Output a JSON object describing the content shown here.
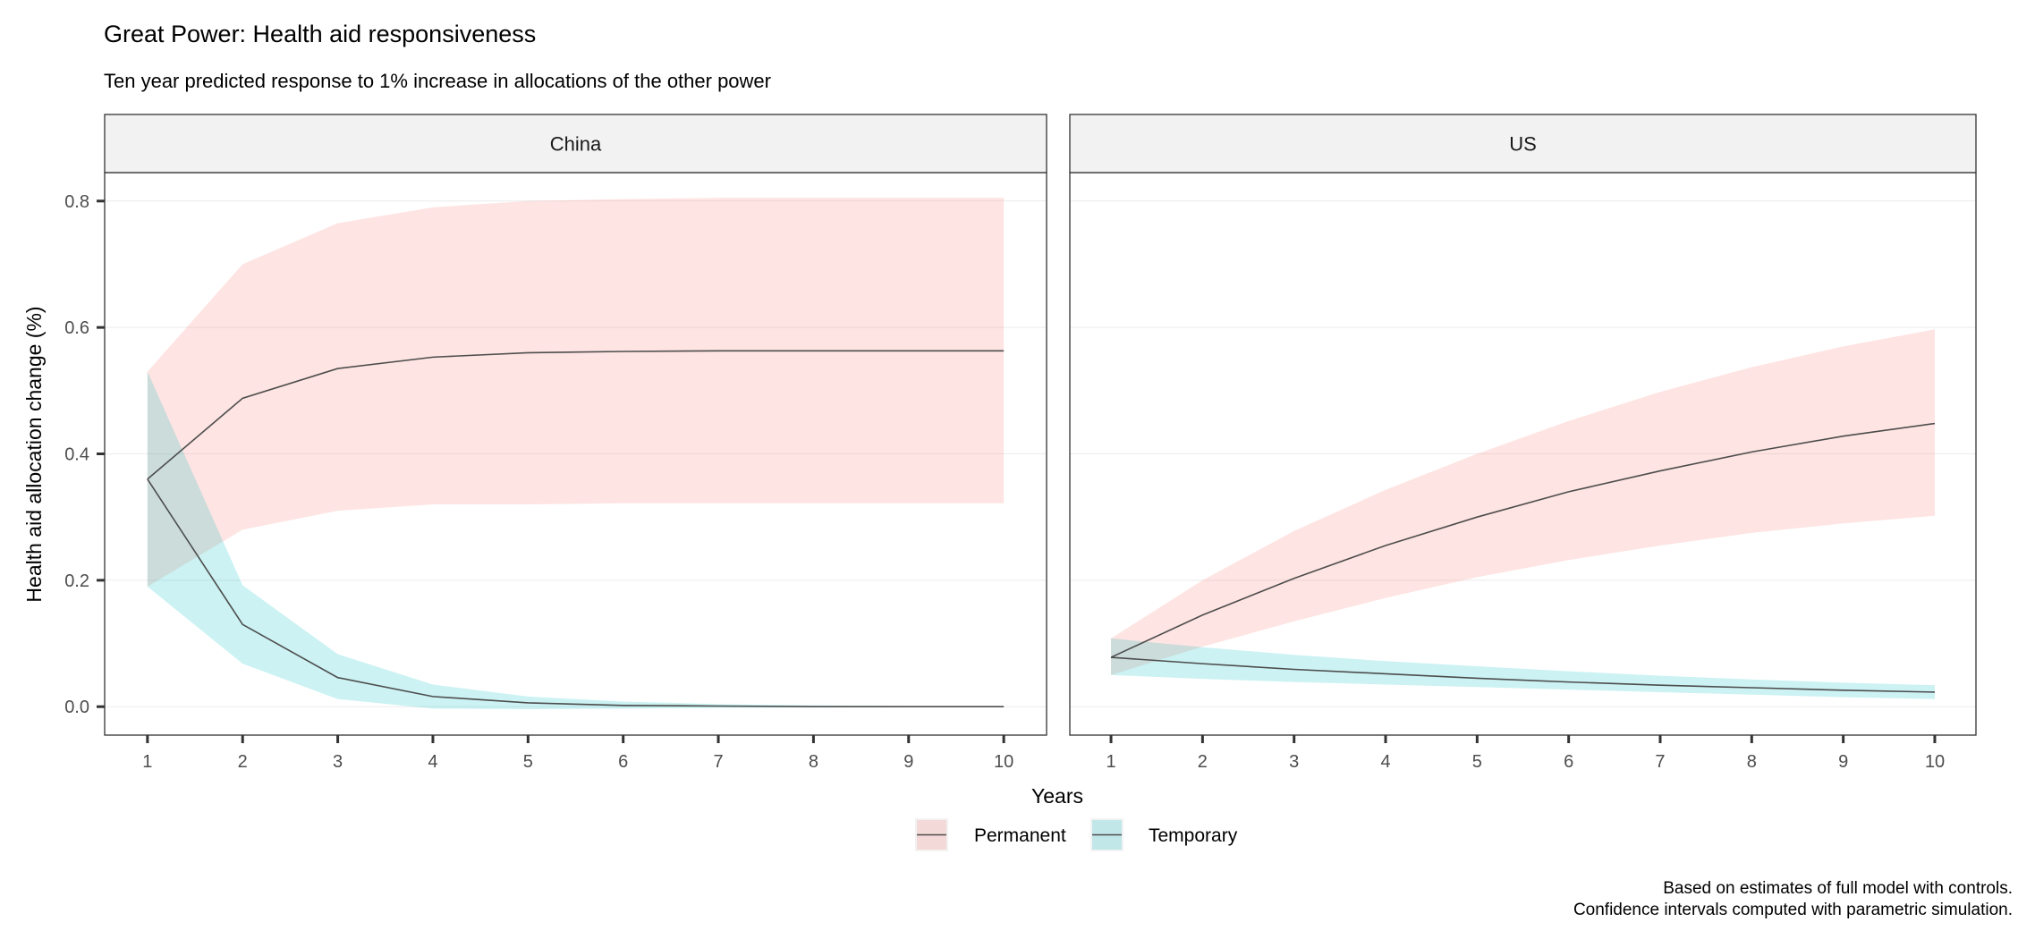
{
  "title": "Great Power: Health aid responsiveness",
  "subtitle": "Ten year predicted response to 1% increase in allocations of the other power",
  "caption_lines": [
    "Based on estimates of full model with controls.",
    "Confidence intervals computed with parametric simulation."
  ],
  "colors": {
    "permanent": "#F8766D",
    "temporary": "#00BFC4",
    "line": "#4d4d4d",
    "strip": "#f2f2f2",
    "grid": "#ebebeb"
  },
  "chart_data": {
    "type": "area",
    "xlabel": "Years",
    "ylabel": "Health aid allocation change (%)",
    "x": [
      1,
      2,
      3,
      4,
      5,
      6,
      7,
      8,
      9,
      10
    ],
    "x_ticks": [
      "1",
      "2",
      "3",
      "4",
      "5",
      "6",
      "7",
      "8",
      "9",
      "10"
    ],
    "y_ticks": [
      "0.0",
      "0.2",
      "0.4",
      "0.6",
      "0.8"
    ],
    "y_tick_values": [
      0,
      0.2,
      0.4,
      0.6,
      0.8
    ],
    "xlim": [
      0.55,
      10.45
    ],
    "ylim": [
      -0.045,
      0.845
    ],
    "legend": {
      "position": "bottom",
      "entries": [
        "Permanent",
        "Temporary"
      ]
    },
    "panels": [
      {
        "name": "China",
        "series": [
          {
            "name": "Permanent",
            "values": [
              0.36,
              0.488,
              0.535,
              0.553,
              0.56,
              0.562,
              0.563,
              0.563,
              0.563,
              0.563
            ],
            "lower": [
              0.19,
              0.28,
              0.31,
              0.32,
              0.32,
              0.322,
              0.322,
              0.322,
              0.322,
              0.322
            ],
            "upper": [
              0.53,
              0.7,
              0.765,
              0.79,
              0.8,
              0.803,
              0.805,
              0.805,
              0.805,
              0.805
            ]
          },
          {
            "name": "Temporary",
            "values": [
              0.36,
              0.13,
              0.046,
              0.016,
              0.006,
              0.002,
              0.001,
              0.0,
              0.0,
              0.0
            ],
            "lower": [
              0.19,
              0.068,
              0.012,
              -0.003,
              -0.004,
              -0.003,
              -0.002,
              -0.001,
              -0.001,
              -0.001
            ],
            "upper": [
              0.53,
              0.192,
              0.083,
              0.035,
              0.016,
              0.008,
              0.004,
              0.002,
              0.001,
              0.001
            ]
          }
        ]
      },
      {
        "name": "US",
        "series": [
          {
            "name": "Permanent",
            "values": [
              0.078,
              0.145,
              0.203,
              0.255,
              0.3,
              0.34,
              0.373,
              0.403,
              0.428,
              0.448
            ],
            "lower": [
              0.05,
              0.095,
              0.135,
              0.172,
              0.205,
              0.232,
              0.255,
              0.275,
              0.29,
              0.302
            ],
            "upper": [
              0.108,
              0.2,
              0.278,
              0.343,
              0.4,
              0.452,
              0.498,
              0.537,
              0.57,
              0.597
            ]
          },
          {
            "name": "Temporary",
            "values": [
              0.078,
              0.068,
              0.059,
              0.052,
              0.045,
              0.039,
              0.034,
              0.03,
              0.026,
              0.023
            ],
            "lower": [
              0.05,
              0.044,
              0.039,
              0.035,
              0.031,
              0.027,
              0.023,
              0.019,
              0.015,
              0.012
            ],
            "upper": [
              0.108,
              0.094,
              0.082,
              0.072,
              0.064,
              0.056,
              0.049,
              0.043,
              0.038,
              0.034
            ]
          }
        ]
      }
    ]
  }
}
